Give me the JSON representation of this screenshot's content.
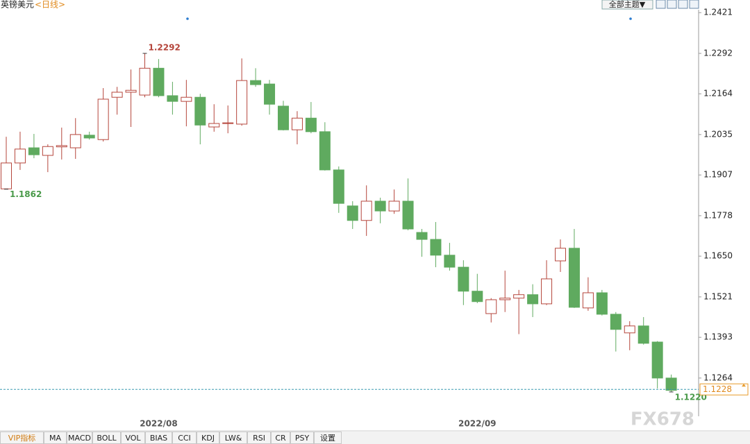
{
  "header": {
    "symbol": "英镑美元",
    "period": "<日线>",
    "theme_button": "全部主题▼"
  },
  "chart_data": {
    "type": "candlestick",
    "categories": [
      null,
      null,
      null,
      null,
      null,
      null,
      null,
      null,
      null,
      null,
      null,
      "2022/08",
      null,
      null,
      null,
      null,
      null,
      null,
      null,
      null,
      null,
      null,
      null,
      null,
      null,
      null,
      null,
      null,
      null,
      null,
      null,
      null,
      null,
      null,
      "2022/09",
      null,
      null,
      null,
      null,
      null,
      null,
      null,
      null,
      null,
      null,
      null,
      null,
      null,
      null
    ],
    "open": [
      1.1863,
      1.1945,
      1.1993,
      1.1969,
      1.1996,
      1.1993,
      1.2033,
      1.2019,
      1.2153,
      1.2169,
      1.216,
      1.2245,
      1.2158,
      1.214,
      1.2153,
      1.2059,
      1.207,
      1.2068,
      1.2206,
      1.2195,
      1.2125,
      1.205,
      1.2087,
      1.2044,
      1.1923,
      1.1809,
      1.1763,
      1.1824,
      1.1793,
      1.1824,
      1.1725,
      1.1703,
      1.1653,
      1.1615,
      1.1539,
      1.1468,
      1.1512,
      1.1517,
      1.1528,
      1.1499,
      1.1635,
      1.1675,
      1.1486,
      1.1534,
      1.1466,
      1.1407,
      1.1429,
      1.1378,
      1.1264
    ],
    "high": [
      1.2028,
      1.2044,
      1.2037,
      1.2004,
      1.2057,
      1.2087,
      1.2044,
      1.2182,
      1.2186,
      1.2241,
      1.2292,
      1.2274,
      1.2202,
      1.2208,
      1.2164,
      1.2131,
      1.2127,
      1.2276,
      1.2245,
      1.2208,
      1.2142,
      1.2109,
      1.2138,
      1.2074,
      1.1934,
      1.1824,
      1.1874,
      1.1835,
      1.1861,
      1.1896,
      1.1736,
      1.1758,
      1.1692,
      1.1637,
      1.1594,
      1.1517,
      1.1604,
      1.1543,
      1.1561,
      1.1637,
      1.1703,
      1.1736,
      1.1583,
      1.1543,
      1.1473,
      1.1444,
      1.1457,
      1.1381,
      1.1275
    ],
    "low": [
      1.1862,
      1.1923,
      1.196,
      1.1916,
      1.1956,
      1.1958,
      1.2019,
      1.2013,
      1.2098,
      1.2059,
      1.2153,
      1.2153,
      1.2098,
      1.2061,
      1.2004,
      1.2044,
      1.2039,
      1.2063,
      1.2186,
      1.2098,
      1.2048,
      1.2004,
      1.2039,
      1.1921,
      1.1787,
      1.1736,
      1.1714,
      1.1754,
      1.1784,
      1.1732,
      1.1648,
      1.1615,
      1.1604,
      1.1495,
      1.1501,
      1.144,
      1.1473,
      1.1403,
      1.1457,
      1.1495,
      1.16,
      1.1486,
      1.1477,
      1.1462,
      1.1348,
      1.1352,
      1.137,
      1.1231,
      1.122
    ],
    "close": [
      1.1945,
      1.1989,
      1.1971,
      1.1997,
      1.2,
      1.2035,
      1.2024,
      1.2147,
      1.2169,
      1.2175,
      1.2245,
      1.2158,
      1.214,
      1.2153,
      1.2065,
      1.207,
      1.2072,
      1.2206,
      1.2193,
      1.2131,
      1.205,
      1.2087,
      1.2044,
      1.1923,
      1.1817,
      1.1763,
      1.1824,
      1.1793,
      1.1824,
      1.1736,
      1.1703,
      1.1653,
      1.1615,
      1.1539,
      1.1506,
      1.1512,
      1.1517,
      1.1528,
      1.1499,
      1.1578,
      1.1675,
      1.1488,
      1.1534,
      1.1466,
      1.1418,
      1.1429,
      1.1374,
      1.1264,
      1.1225
    ],
    "up_color": "#b5453b",
    "down_color": "#5faa5f",
    "ylim": [
      1.1143,
      1.2461
    ],
    "yticks": [
      1.2421,
      1.2292,
      1.2164,
      1.2035,
      1.1907,
      1.1778,
      {
        "value": 1.165,
        "label": "1.1650"
      },
      1.1521,
      1.1393,
      1.1264
    ],
    "annotations": [
      {
        "value": 1.2292
      },
      {
        "value": 1.1862
      },
      {
        "value": 1.122,
        "label": "1.1220"
      }
    ],
    "last_price": 1.1228
  },
  "tabs": [
    "VIP指标",
    "MA",
    "MACD",
    "BOLL",
    "VOL",
    "BIAS",
    "CCI",
    "KDJ",
    "LW&",
    "RSI",
    "CR",
    "PSY",
    "设置"
  ],
  "watermark": "FX678"
}
